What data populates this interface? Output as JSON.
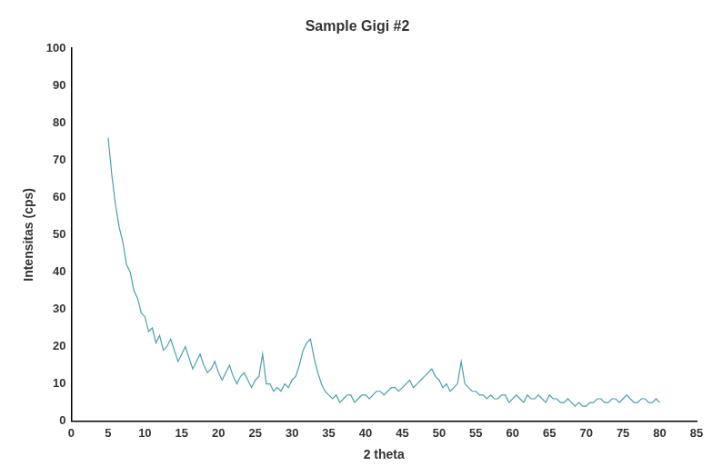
{
  "chart_data": {
    "type": "line",
    "title": "Sample Gigi #2",
    "x_label": "2 theta",
    "y_label": "Intensitas (cps)",
    "color": "#4a9fae",
    "grid": false,
    "xlim": [
      0,
      85
    ],
    "ylim": [
      0,
      100
    ],
    "xticks": [
      0,
      5,
      10,
      15,
      20,
      25,
      30,
      35,
      40,
      45,
      50,
      55,
      60,
      65,
      70,
      75,
      80,
      85
    ],
    "yticks": [
      0,
      10,
      20,
      30,
      40,
      50,
      60,
      70,
      80,
      90,
      100
    ],
    "x": [
      5,
      5.5,
      6,
      6.5,
      7,
      7.5,
      8,
      8.5,
      9,
      9.5,
      10,
      10.5,
      11,
      11.5,
      12,
      12.5,
      13,
      13.5,
      14,
      14.5,
      15,
      15.5,
      16,
      16.5,
      17,
      17.5,
      18,
      18.5,
      19,
      19.5,
      20,
      20.5,
      21,
      21.5,
      22,
      22.5,
      23,
      23.5,
      24,
      24.5,
      25,
      25.5,
      26,
      26.5,
      27,
      27.5,
      28,
      28.5,
      29,
      29.5,
      30,
      30.5,
      31,
      31.5,
      32,
      32.5,
      33,
      33.5,
      34,
      34.5,
      35,
      35.5,
      36,
      36.5,
      37,
      37.5,
      38,
      38.5,
      39,
      39.5,
      40,
      40.5,
      41,
      41.5,
      42,
      42.5,
      43,
      43.5,
      44,
      44.5,
      45,
      45.5,
      46,
      46.5,
      47,
      47.5,
      48,
      48.5,
      49,
      49.5,
      50,
      50.5,
      51,
      51.5,
      52,
      52.5,
      53,
      53.5,
      54,
      54.5,
      55,
      55.5,
      56,
      56.5,
      57,
      57.5,
      58,
      58.5,
      59,
      59.5,
      60,
      60.5,
      61,
      61.5,
      62,
      62.5,
      63,
      63.5,
      64,
      64.5,
      65,
      65.5,
      66,
      66.5,
      67,
      67.5,
      68,
      68.5,
      69,
      69.5,
      70,
      70.5,
      71,
      71.5,
      72,
      72.5,
      73,
      73.5,
      74,
      74.5,
      75,
      75.5,
      76,
      76.5,
      77,
      77.5,
      78,
      78.5,
      79,
      79.5,
      80
    ],
    "values": [
      76,
      66,
      58,
      52,
      48,
      42,
      40,
      35,
      33,
      29,
      28,
      24,
      25,
      21,
      23,
      19,
      20,
      22,
      19,
      16,
      18,
      20,
      17,
      14,
      16,
      18,
      15,
      13,
      14,
      16,
      13,
      11,
      13,
      15,
      12,
      10,
      12,
      13,
      11,
      9,
      11,
      12,
      18,
      10,
      10,
      8,
      9,
      8,
      10,
      9,
      11,
      12,
      15,
      19,
      21,
      22,
      17,
      13,
      10,
      8,
      7,
      6,
      7,
      5,
      6,
      7,
      7,
      5,
      6,
      7,
      7,
      6,
      7,
      8,
      8,
      7,
      8,
      9,
      9,
      8,
      9,
      10,
      11,
      9,
      10,
      11,
      12,
      13,
      14,
      12,
      11,
      9,
      10,
      8,
      9,
      10,
      16,
      10,
      9,
      8,
      8,
      7,
      7,
      6,
      7,
      6,
      6,
      7,
      7,
      5,
      6,
      7,
      6,
      5,
      7,
      6,
      6,
      7,
      6,
      5,
      7,
      6,
      6,
      5,
      5,
      6,
      5,
      4,
      5,
      4,
      4,
      5,
      5,
      6,
      6,
      5,
      5,
      6,
      6,
      5,
      6,
      7,
      6,
      5,
      5,
      6,
      6,
      5,
      5,
      6,
      5
    ]
  }
}
